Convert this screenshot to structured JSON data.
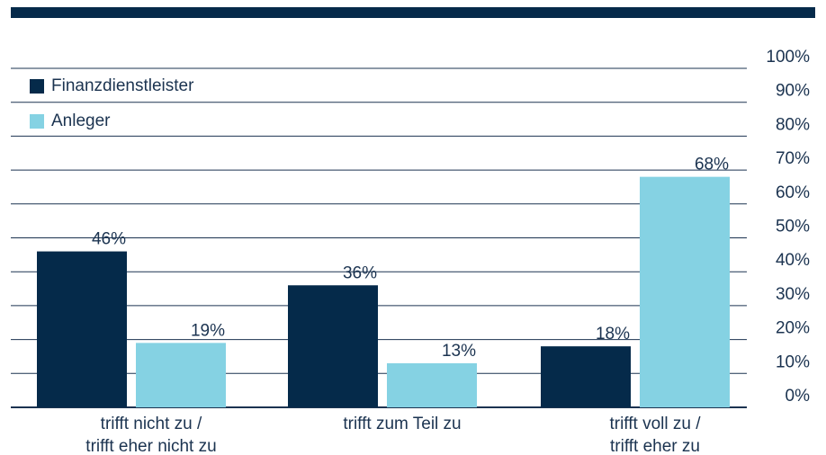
{
  "chart_data": {
    "type": "bar",
    "categories": [
      [
        "trifft nicht zu /",
        "trifft eher nicht zu"
      ],
      [
        "trifft zum Teil zu"
      ],
      [
        "trifft voll zu /",
        "trifft eher zu"
      ]
    ],
    "series": [
      {
        "name": "Finanzdienstleister",
        "color": "#052a4a",
        "values": [
          46,
          36,
          18
        ],
        "value_labels": [
          "46%",
          "36%",
          "18%"
        ]
      },
      {
        "name": "Anleger",
        "color": "#85d2e3",
        "values": [
          19,
          13,
          68
        ],
        "value_labels": [
          "19%",
          "13%",
          "68%"
        ]
      }
    ],
    "ylim": [
      0,
      100
    ],
    "yticks": [
      {
        "value": 0,
        "label": "0%"
      },
      {
        "value": 10,
        "label": "10%"
      },
      {
        "value": 20,
        "label": "20%"
      },
      {
        "value": 30,
        "label": "30%"
      },
      {
        "value": 40,
        "label": "40%"
      },
      {
        "value": 50,
        "label": "50%"
      },
      {
        "value": 60,
        "label": "60%"
      },
      {
        "value": 70,
        "label": "70%"
      },
      {
        "value": 80,
        "label": "80%"
      },
      {
        "value": 90,
        "label": "90%"
      },
      {
        "value": 100,
        "label": "100%"
      }
    ],
    "grid": true,
    "legend": "top-left"
  }
}
